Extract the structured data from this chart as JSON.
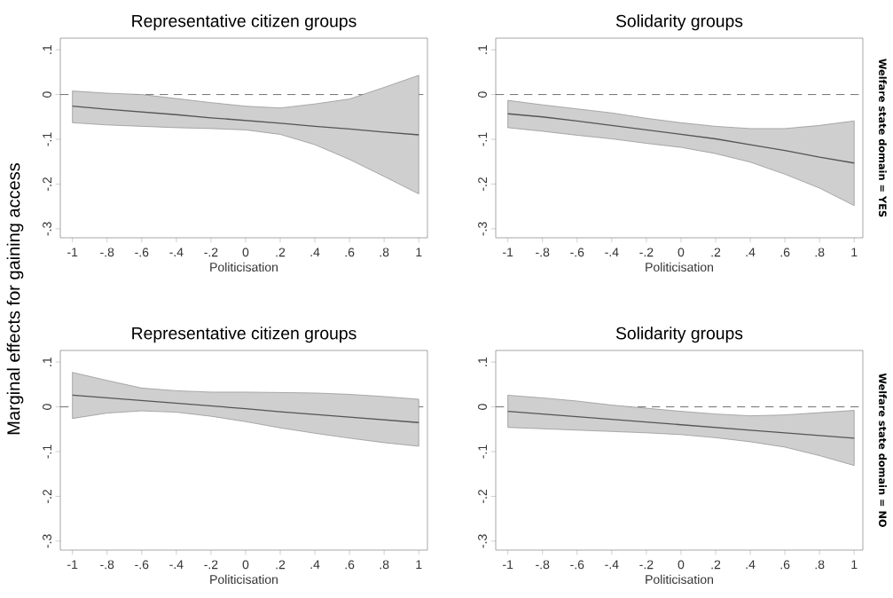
{
  "chart_data": [
    {
      "type": "line",
      "title": "Representative citizen groups",
      "xlabel": "Politicisation",
      "ylabel": "Marginal effects for gaining access",
      "x": [
        -1,
        -0.8,
        -0.6,
        -0.4,
        -0.2,
        0,
        0.2,
        0.4,
        0.6,
        0.8,
        1
      ],
      "series": [
        {
          "color": "#555555",
          "values": [
            -0.026,
            -0.033,
            -0.039,
            -0.045,
            -0.052,
            -0.058,
            -0.064,
            -0.071,
            -0.077,
            -0.084,
            -0.09
          ],
          "lower": [
            -0.063,
            -0.068,
            -0.071,
            -0.074,
            -0.076,
            -0.079,
            -0.089,
            -0.112,
            -0.145,
            -0.183,
            -0.222
          ],
          "upper": [
            0.008,
            0.003,
            0,
            -0.009,
            -0.018,
            -0.026,
            -0.03,
            -0.021,
            -0.01,
            0.016,
            0.043
          ]
        }
      ],
      "xlim": [
        -1.07,
        1.05
      ],
      "ylim": [
        -0.32,
        0.126
      ],
      "xticks": [
        -1,
        {
          "value": -0.8,
          "label": "-.8"
        },
        {
          "value": -0.6,
          "label": "-.6"
        },
        {
          "value": -0.4,
          "label": "-.4"
        },
        {
          "value": -0.2,
          "label": "-.2"
        },
        0,
        {
          "value": 0.2,
          "label": ".2"
        },
        {
          "value": 0.4,
          "label": ".4"
        },
        {
          "value": 0.6,
          "label": ".6"
        },
        {
          "value": 0.8,
          "label": ".8"
        },
        1
      ],
      "yticks": [
        {
          "value": -0.3,
          "label": "-.3"
        },
        {
          "value": -0.2,
          "label": "-.2"
        },
        {
          "value": -0.1,
          "label": "-.1"
        },
        0,
        {
          "value": 0.1,
          "label": ".1"
        }
      ],
      "ref_lines": [
        {
          "axis": "y",
          "value": 0,
          "line_style": "dashed"
        }
      ]
    },
    {
      "type": "line",
      "title": "Solidarity groups",
      "xlabel": "Politicisation",
      "annotations": [
        "Welfare state domain = YES"
      ],
      "x": [
        -1,
        -0.8,
        -0.6,
        -0.4,
        -0.2,
        0,
        0.2,
        0.4,
        0.6,
        0.8,
        1
      ],
      "series": [
        {
          "color": "#555555",
          "values": [
            -0.043,
            -0.05,
            -0.059,
            -0.069,
            -0.079,
            -0.089,
            -0.099,
            -0.112,
            -0.125,
            -0.14,
            -0.153
          ],
          "lower": [
            -0.074,
            -0.082,
            -0.091,
            -0.099,
            -0.109,
            -0.118,
            -0.132,
            -0.151,
            -0.178,
            -0.209,
            -0.248
          ],
          "upper": [
            -0.013,
            -0.023,
            -0.032,
            -0.041,
            -0.053,
            -0.063,
            -0.071,
            -0.076,
            -0.076,
            -0.069,
            -0.059
          ]
        }
      ],
      "xlim": [
        -1.07,
        1.05
      ],
      "ylim": [
        -0.32,
        0.126
      ],
      "xticks": [
        -1,
        {
          "value": -0.8,
          "label": "-.8"
        },
        {
          "value": -0.6,
          "label": "-.6"
        },
        {
          "value": -0.4,
          "label": "-.4"
        },
        {
          "value": -0.2,
          "label": "-.2"
        },
        0,
        {
          "value": 0.2,
          "label": ".2"
        },
        {
          "value": 0.4,
          "label": ".4"
        },
        {
          "value": 0.6,
          "label": ".6"
        },
        {
          "value": 0.8,
          "label": ".8"
        },
        1
      ],
      "yticks": [
        {
          "value": -0.3,
          "label": "-.3"
        },
        {
          "value": -0.2,
          "label": "-.2"
        },
        {
          "value": -0.1,
          "label": "-.1"
        },
        0,
        {
          "value": 0.1,
          "label": ".1"
        }
      ],
      "ref_lines": [
        {
          "axis": "y",
          "value": 0,
          "line_style": "dashed"
        }
      ]
    },
    {
      "type": "line",
      "title": "Representative citizen groups",
      "xlabel": "Politicisation",
      "x": [
        -1,
        -0.8,
        -0.6,
        -0.4,
        -0.2,
        0,
        0.2,
        0.4,
        0.6,
        0.8,
        1
      ],
      "series": [
        {
          "color": "#555555",
          "values": [
            0.026,
            0.02,
            0.014,
            0.008,
            0.002,
            -0.004,
            -0.011,
            -0.017,
            -0.023,
            -0.029,
            -0.035
          ],
          "lower": [
            -0.026,
            -0.014,
            -0.009,
            -0.012,
            -0.021,
            -0.033,
            -0.047,
            -0.059,
            -0.07,
            -0.08,
            -0.088
          ],
          "upper": [
            0.077,
            0.059,
            0.042,
            0.036,
            0.033,
            0.033,
            0.032,
            0.031,
            0.028,
            0.023,
            0.017
          ]
        }
      ],
      "xlim": [
        -1.07,
        1.05
      ],
      "ylim": [
        -0.32,
        0.126
      ],
      "xticks": [
        -1,
        {
          "value": -0.8,
          "label": "-.8"
        },
        {
          "value": -0.6,
          "label": "-.6"
        },
        {
          "value": -0.4,
          "label": "-.4"
        },
        {
          "value": -0.2,
          "label": "-.2"
        },
        0,
        {
          "value": 0.2,
          "label": ".2"
        },
        {
          "value": 0.4,
          "label": ".4"
        },
        {
          "value": 0.6,
          "label": ".6"
        },
        {
          "value": 0.8,
          "label": ".8"
        },
        1
      ],
      "yticks": [
        {
          "value": -0.3,
          "label": "-.3"
        },
        {
          "value": -0.2,
          "label": "-.2"
        },
        {
          "value": -0.1,
          "label": "-.1"
        },
        0,
        {
          "value": 0.1,
          "label": ".1"
        }
      ],
      "ref_lines": [
        {
          "axis": "y",
          "value": 0,
          "line_style": "dashed"
        }
      ]
    },
    {
      "type": "line",
      "title": "Solidarity groups",
      "xlabel": "Politicisation",
      "annotations": [
        "Welfare state domain = NO"
      ],
      "x": [
        -1,
        -0.8,
        -0.6,
        -0.4,
        -0.2,
        0,
        0.2,
        0.4,
        0.6,
        0.8,
        1
      ],
      "series": [
        {
          "color": "#555555",
          "values": [
            -0.01,
            -0.016,
            -0.022,
            -0.028,
            -0.034,
            -0.04,
            -0.046,
            -0.052,
            -0.058,
            -0.064,
            -0.07
          ],
          "lower": [
            -0.046,
            -0.049,
            -0.052,
            -0.055,
            -0.058,
            -0.062,
            -0.069,
            -0.078,
            -0.09,
            -0.109,
            -0.131
          ],
          "upper": [
            0.026,
            0.02,
            0.013,
            0.004,
            -0.003,
            -0.01,
            -0.016,
            -0.02,
            -0.018,
            -0.013,
            -0.008
          ]
        }
      ],
      "xlim": [
        -1.07,
        1.05
      ],
      "ylim": [
        -0.32,
        0.126
      ],
      "xticks": [
        -1,
        {
          "value": -0.8,
          "label": "-.8"
        },
        {
          "value": -0.6,
          "label": "-.6"
        },
        {
          "value": -0.4,
          "label": "-.4"
        },
        {
          "value": -0.2,
          "label": "-.2"
        },
        0,
        {
          "value": 0.2,
          "label": ".2"
        },
        {
          "value": 0.4,
          "label": ".4"
        },
        {
          "value": 0.6,
          "label": ".6"
        },
        {
          "value": 0.8,
          "label": ".8"
        },
        1
      ],
      "yticks": [
        {
          "value": -0.3,
          "label": "-.3"
        },
        {
          "value": -0.2,
          "label": "-.2"
        },
        {
          "value": -0.1,
          "label": "-.1"
        },
        0,
        {
          "value": 0.1,
          "label": ".1"
        }
      ],
      "ref_lines": [
        {
          "axis": "y",
          "value": 0,
          "line_style": "dashed"
        }
      ]
    }
  ]
}
